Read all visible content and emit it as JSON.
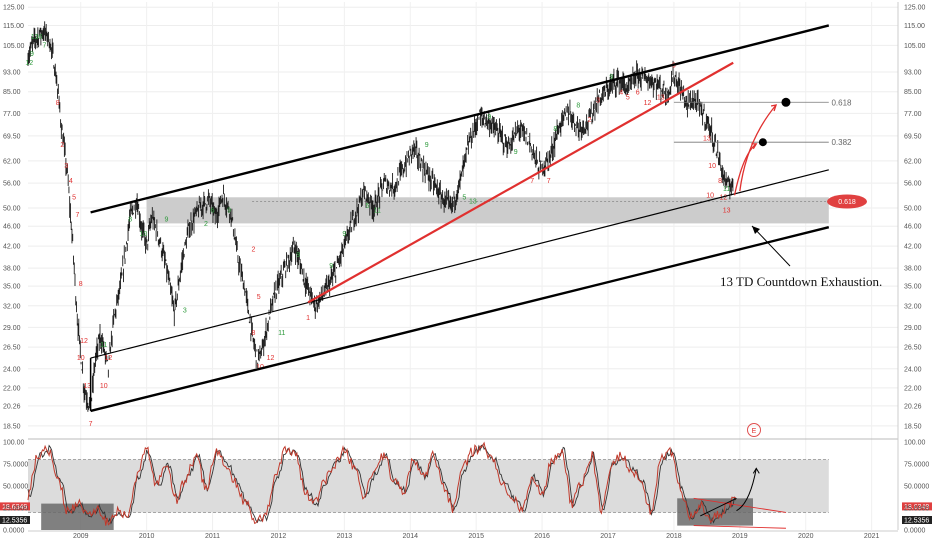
{
  "chart_data": [
    {
      "type": "line",
      "title": "",
      "xlabel": "",
      "ylabel": "",
      "x_ticks": [
        "2009",
        "2010",
        "2011",
        "2012",
        "2013",
        "2014",
        "2015",
        "2016",
        "2017",
        "2018",
        "2019",
        "2020",
        "2021"
      ],
      "y_ticks": [
        "125.00",
        "115.00",
        "105.00",
        "93.00",
        "85.00",
        "77.00",
        "69.50",
        "62.00",
        "56.00",
        "50.00",
        "46.00",
        "42.00",
        "38.00",
        "35.00",
        "32.00",
        "29.00",
        "26.50",
        "24.00",
        "22.00",
        "20.26",
        "18.50"
      ],
      "ylim": [
        17.5,
        128
      ],
      "y_scale": "log",
      "x_range": [
        2008.2,
        2021.4
      ],
      "series": [
        {
          "values_x": [
            2008.2,
            2008.3,
            2008.42,
            2008.5,
            2008.58,
            2008.65,
            2008.72,
            2008.8,
            2008.88,
            2008.95,
            2009.05,
            2009.15,
            2009.22,
            2009.3,
            2009.42,
            2009.5,
            2009.62,
            2009.75,
            2009.85,
            2009.92,
            2010.0,
            2010.08,
            2010.18,
            2010.3,
            2010.42,
            2010.55,
            2010.65,
            2010.8,
            2010.95,
            2011.05,
            2011.15,
            2011.28,
            2011.38,
            2011.5,
            2011.6,
            2011.68,
            2011.75,
            2011.85,
            2011.95,
            2012.1,
            2012.25,
            2012.4,
            2012.55,
            2012.7,
            2012.85,
            2013.0,
            2013.15,
            2013.3,
            2013.45,
            2013.6,
            2013.75,
            2013.9,
            2014.05,
            2014.2,
            2014.35,
            2014.5,
            2014.62,
            2014.75,
            2014.9,
            2015.05,
            2015.2,
            2015.35,
            2015.5,
            2015.65,
            2015.8,
            2015.95,
            2016.1,
            2016.25,
            2016.4,
            2016.55,
            2016.7,
            2016.85,
            2017.0,
            2017.15,
            2017.3,
            2017.45,
            2017.6,
            2017.75,
            2017.9,
            2018.0,
            2018.1,
            2018.2,
            2018.3,
            2018.42,
            2018.55,
            2018.65,
            2018.75,
            2018.82,
            2018.9
          ],
          "values": [
            100,
            108,
            112,
            110,
            100,
            86,
            70,
            58,
            42,
            30,
            22,
            20,
            25,
            28,
            24,
            30,
            36,
            48,
            52,
            46,
            42,
            48,
            44,
            38,
            31,
            40,
            46,
            50,
            52,
            48,
            53,
            49,
            40,
            34,
            28,
            25,
            26,
            30,
            34,
            38,
            42,
            36,
            32,
            34,
            37,
            42,
            48,
            54,
            50,
            56,
            55,
            60,
            66,
            60,
            56,
            52,
            50,
            56,
            68,
            76,
            74,
            70,
            66,
            72,
            68,
            60,
            62,
            72,
            78,
            72,
            74,
            82,
            86,
            90,
            86,
            92,
            90,
            88,
            84,
            92,
            86,
            80,
            82,
            78,
            72,
            65,
            58,
            55,
            56
          ],
          "name": ""
        }
      ],
      "annotations": [
        "13 TD Countdown Exhaustion.",
        "0.618",
        "0.382",
        "0.618"
      ],
      "price_badge": "",
      "grid": true,
      "legend": "none"
    },
    {
      "type": "line",
      "title": "",
      "y_ticks": [
        "100.00",
        "75.0000",
        "50.0000",
        "25.0000",
        "0.0000"
      ],
      "ylim": [
        0,
        100
      ],
      "badges": [
        "18.6349",
        "12.5356"
      ],
      "values_x": [
        2008.2,
        2008.35,
        2008.5,
        2008.65,
        2008.8,
        2008.95,
        2009.1,
        2009.25,
        2009.4,
        2009.55,
        2009.7,
        2009.85,
        2010.0,
        2010.15,
        2010.3,
        2010.45,
        2010.6,
        2010.75,
        2010.9,
        2011.05,
        2011.2,
        2011.35,
        2011.5,
        2011.65,
        2011.8,
        2011.95,
        2012.1,
        2012.25,
        2012.4,
        2012.55,
        2012.7,
        2012.85,
        2013.0,
        2013.15,
        2013.3,
        2013.45,
        2013.6,
        2013.75,
        2013.9,
        2014.05,
        2014.2,
        2014.35,
        2014.5,
        2014.65,
        2014.8,
        2014.95,
        2015.1,
        2015.25,
        2015.4,
        2015.55,
        2015.7,
        2015.85,
        2016.0,
        2016.15,
        2016.3,
        2016.45,
        2016.6,
        2016.75,
        2016.9,
        2017.05,
        2017.2,
        2017.35,
        2017.5,
        2017.65,
        2017.8,
        2017.95,
        2018.1,
        2018.25,
        2018.4,
        2018.55,
        2018.7,
        2018.85,
        2018.95
      ],
      "values": [
        40,
        85,
        92,
        60,
        20,
        30,
        15,
        25,
        10,
        20,
        15,
        60,
        90,
        50,
        75,
        35,
        60,
        85,
        45,
        90,
        75,
        55,
        30,
        10,
        15,
        60,
        90,
        88,
        45,
        30,
        55,
        75,
        92,
        70,
        40,
        65,
        85,
        55,
        45,
        80,
        60,
        85,
        50,
        25,
        70,
        90,
        95,
        80,
        55,
        35,
        25,
        60,
        40,
        80,
        90,
        30,
        55,
        85,
        25,
        75,
        85,
        70,
        55,
        20,
        80,
        90,
        45,
        15,
        30,
        10,
        20,
        30,
        40
      ]
    }
  ],
  "colors": {
    "channel": "#000000",
    "trendline_red": "#e0302f",
    "price_bars": "#1a1a1a",
    "support_zone": "#c9c9c9",
    "td_green": "#2e9a3c",
    "td_red": "#e0302f",
    "stoch_line": "#c0392b",
    "stoch_dark_zone": "#6a6a6a",
    "badge_red": "#e04040",
    "badge_dark": "#222222"
  },
  "marker_letter": "E"
}
